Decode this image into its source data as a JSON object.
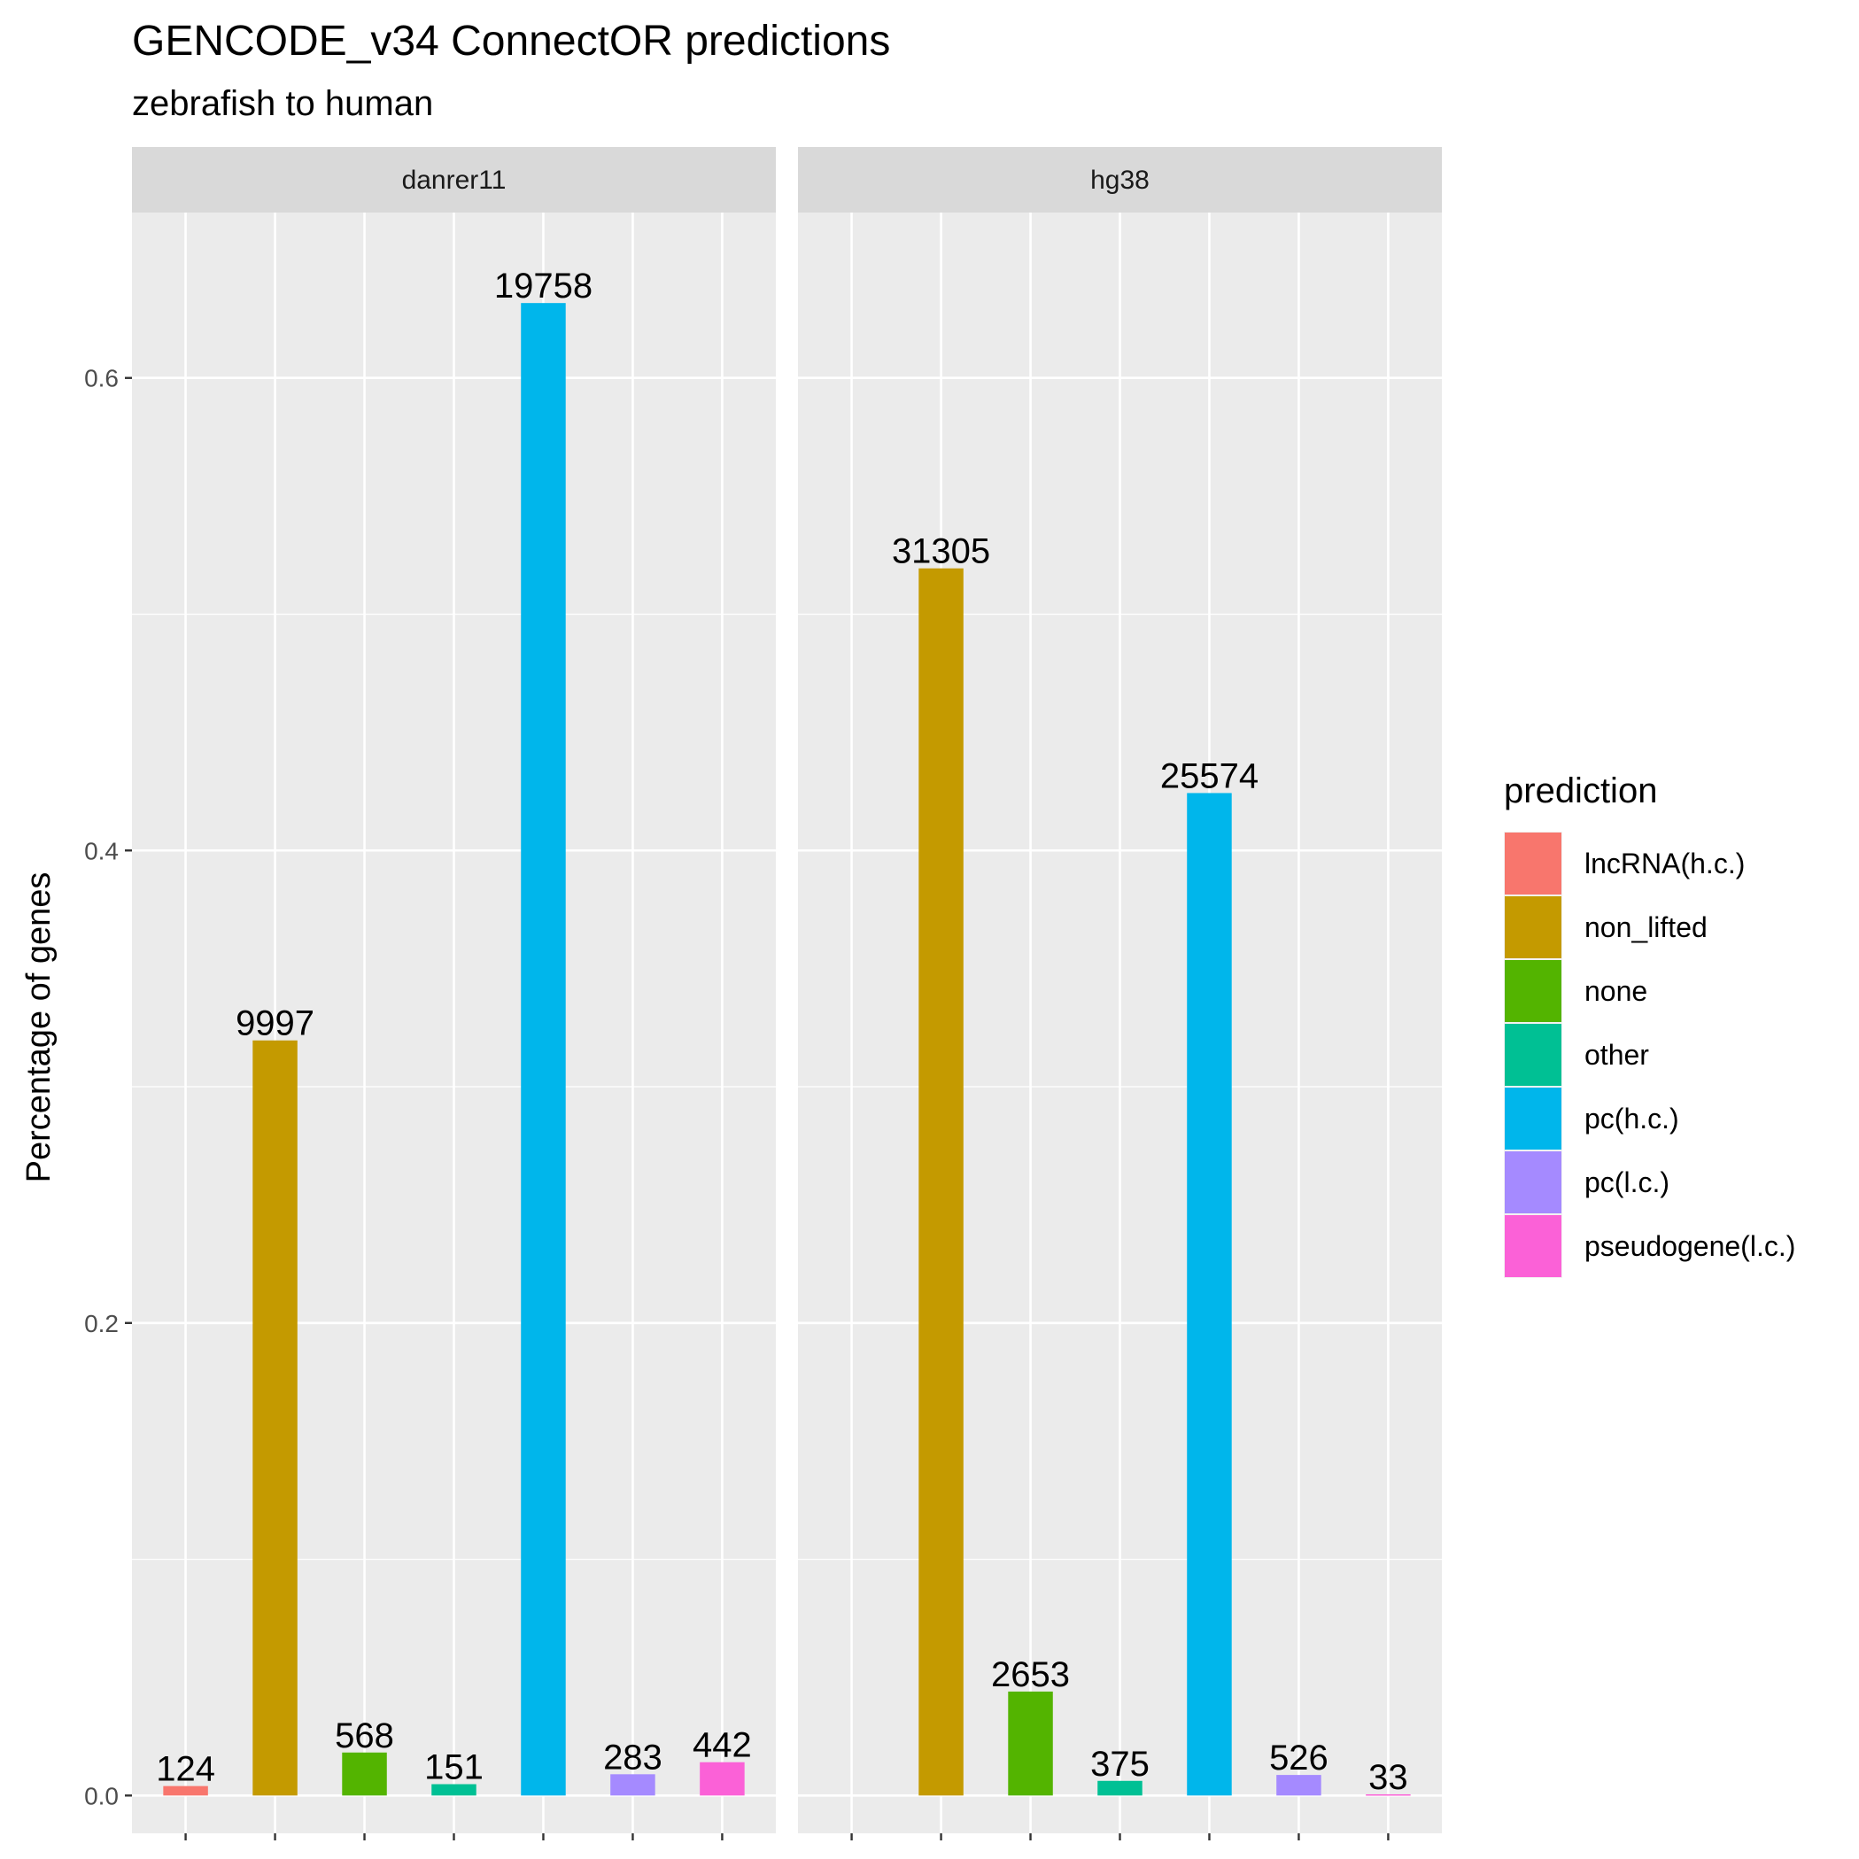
{
  "chart_data": {
    "type": "bar",
    "title": "GENCODE_v34 ConnectOR predictions",
    "subtitle": "zebrafish to human",
    "ylabel": "Percentage of genes",
    "xlabel": "",
    "ylim": [
      -0.016,
      0.67
    ],
    "yticks": [
      {
        "value": 0.0,
        "label": "0.0"
      },
      {
        "value": 0.2,
        "label": "0.2"
      },
      {
        "value": 0.4,
        "label": "0.4"
      },
      {
        "value": 0.6,
        "label": "0.6"
      }
    ],
    "categories": [
      "lncRNA(h.c.)",
      "non_lifted",
      "none",
      "other",
      "pc(h.c.)",
      "pc(l.c.)",
      "pseudogene(l.c.)"
    ],
    "colors": [
      "#F8766D",
      "#C49A00",
      "#53B400",
      "#00C094",
      "#00B6EB",
      "#A58AFF",
      "#FB61D7"
    ],
    "legend": {
      "title": "prediction",
      "position": "right"
    },
    "grid": true,
    "facets": [
      {
        "name": "danrer11",
        "values": [
          0.004,
          0.3196,
          0.0182,
          0.0048,
          0.6317,
          0.009,
          0.0141
        ],
        "labels": [
          "124",
          "9997",
          "568",
          "151",
          "19758",
          "283",
          "442"
        ]
      },
      {
        "name": "hg38",
        "values": [
          null,
          0.5194,
          0.044,
          0.0062,
          0.4243,
          0.0087,
          0.0005
        ],
        "labels": [
          "",
          "31305",
          "2653",
          "375",
          "25574",
          "526",
          "33"
        ]
      }
    ]
  }
}
